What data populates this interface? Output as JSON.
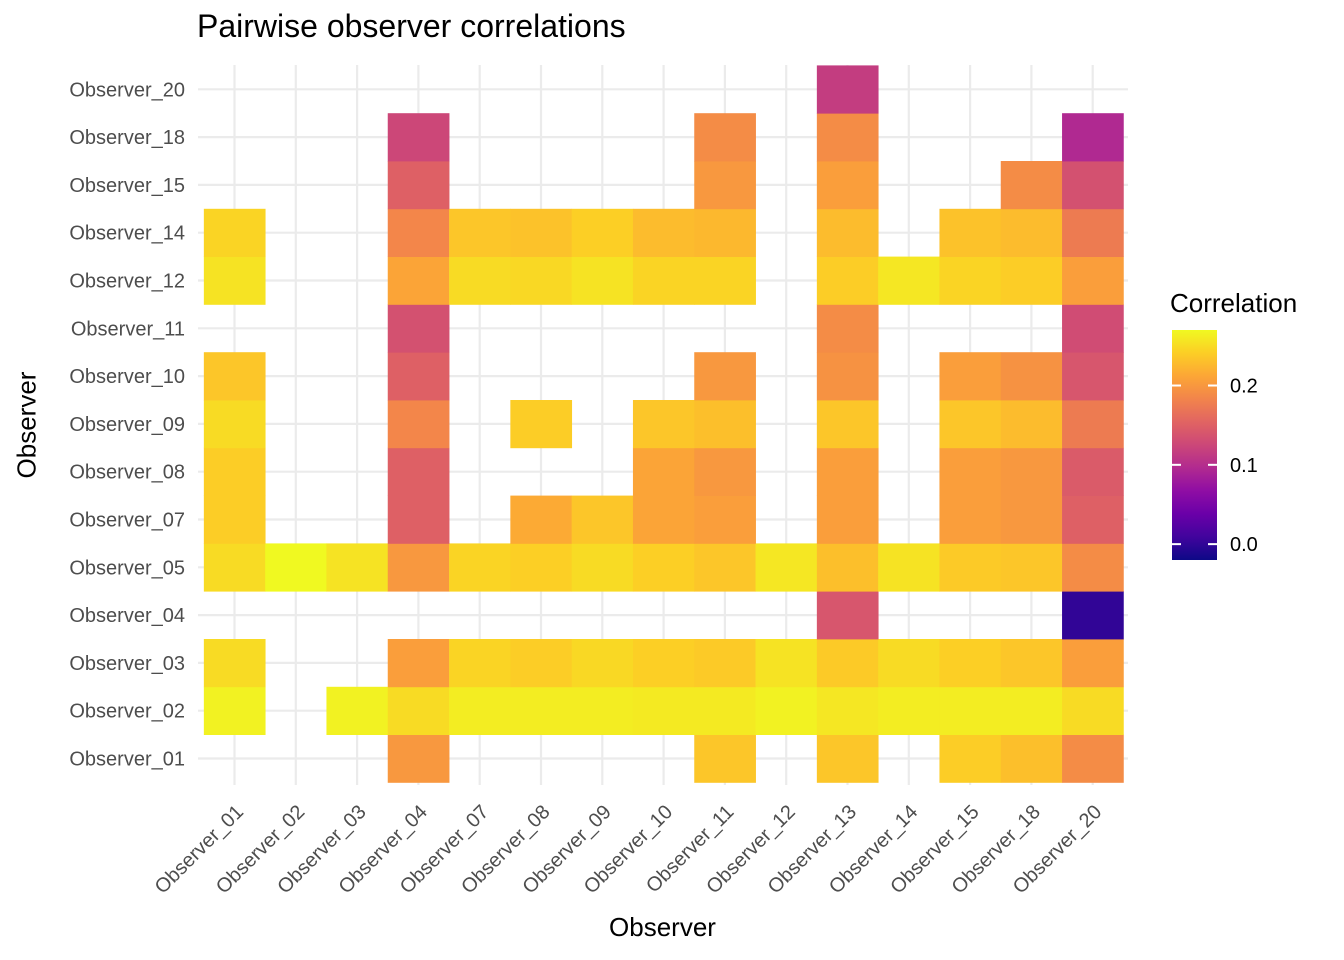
{
  "chart_data": {
    "type": "heatmap",
    "title": "Pairwise observer correlations",
    "xlabel": "Observer",
    "ylabel": "Observer",
    "x_categories": [
      "Observer_01",
      "Observer_02",
      "Observer_03",
      "Observer_04",
      "Observer_07",
      "Observer_08",
      "Observer_09",
      "Observer_10",
      "Observer_11",
      "Observer_12",
      "Observer_13",
      "Observer_14",
      "Observer_15",
      "Observer_18",
      "Observer_20"
    ],
    "y_categories": [
      "Observer_01",
      "Observer_02",
      "Observer_03",
      "Observer_04",
      "Observer_05",
      "Observer_07",
      "Observer_08",
      "Observer_09",
      "Observer_10",
      "Observer_11",
      "Observer_12",
      "Observer_14",
      "Observer_15",
      "Observer_18",
      "Observer_20"
    ],
    "cells": [
      [
        "Observer_04",
        "Observer_01",
        0.2
      ],
      [
        "Observer_11",
        "Observer_01",
        0.235
      ],
      [
        "Observer_13",
        "Observer_01",
        0.235
      ],
      [
        "Observer_15",
        "Observer_01",
        0.24
      ],
      [
        "Observer_18",
        "Observer_01",
        0.23
      ],
      [
        "Observer_20",
        "Observer_01",
        0.19
      ],
      [
        "Observer_01",
        "Observer_02",
        0.265
      ],
      [
        "Observer_03",
        "Observer_02",
        0.265
      ],
      [
        "Observer_04",
        "Observer_02",
        0.25
      ],
      [
        "Observer_07",
        "Observer_02",
        0.262
      ],
      [
        "Observer_08",
        "Observer_02",
        0.262
      ],
      [
        "Observer_09",
        "Observer_02",
        0.262
      ],
      [
        "Observer_10",
        "Observer_02",
        0.26
      ],
      [
        "Observer_11",
        "Observer_02",
        0.26
      ],
      [
        "Observer_12",
        "Observer_02",
        0.265
      ],
      [
        "Observer_13",
        "Observer_02",
        0.258
      ],
      [
        "Observer_14",
        "Observer_02",
        0.262
      ],
      [
        "Observer_15",
        "Observer_02",
        0.262
      ],
      [
        "Observer_18",
        "Observer_02",
        0.262
      ],
      [
        "Observer_20",
        "Observer_02",
        0.25
      ],
      [
        "Observer_01",
        "Observer_03",
        0.25
      ],
      [
        "Observer_04",
        "Observer_03",
        0.205
      ],
      [
        "Observer_07",
        "Observer_03",
        0.245
      ],
      [
        "Observer_08",
        "Observer_03",
        0.24
      ],
      [
        "Observer_09",
        "Observer_03",
        0.248
      ],
      [
        "Observer_10",
        "Observer_03",
        0.242
      ],
      [
        "Observer_11",
        "Observer_03",
        0.238
      ],
      [
        "Observer_12",
        "Observer_03",
        0.255
      ],
      [
        "Observer_13",
        "Observer_03",
        0.238
      ],
      [
        "Observer_14",
        "Observer_03",
        0.25
      ],
      [
        "Observer_15",
        "Observer_03",
        0.242
      ],
      [
        "Observer_18",
        "Observer_03",
        0.235
      ],
      [
        "Observer_20",
        "Observer_03",
        0.205
      ],
      [
        "Observer_13",
        "Observer_04",
        0.14
      ],
      [
        "Observer_20",
        "Observer_04",
        0.0
      ],
      [
        "Observer_01",
        "Observer_05",
        0.25
      ],
      [
        "Observer_02",
        "Observer_05",
        0.27
      ],
      [
        "Observer_03",
        "Observer_05",
        0.255
      ],
      [
        "Observer_04",
        "Observer_05",
        0.2
      ],
      [
        "Observer_07",
        "Observer_05",
        0.245
      ],
      [
        "Observer_08",
        "Observer_05",
        0.242
      ],
      [
        "Observer_09",
        "Observer_05",
        0.25
      ],
      [
        "Observer_10",
        "Observer_05",
        0.242
      ],
      [
        "Observer_11",
        "Observer_05",
        0.235
      ],
      [
        "Observer_12",
        "Observer_05",
        0.258
      ],
      [
        "Observer_13",
        "Observer_05",
        0.23
      ],
      [
        "Observer_14",
        "Observer_05",
        0.255
      ],
      [
        "Observer_15",
        "Observer_05",
        0.238
      ],
      [
        "Observer_18",
        "Observer_05",
        0.235
      ],
      [
        "Observer_20",
        "Observer_05",
        0.19
      ],
      [
        "Observer_01",
        "Observer_07",
        0.24
      ],
      [
        "Observer_04",
        "Observer_07",
        0.15
      ],
      [
        "Observer_08",
        "Observer_07",
        0.215
      ],
      [
        "Observer_09",
        "Observer_07",
        0.235
      ],
      [
        "Observer_10",
        "Observer_07",
        0.21
      ],
      [
        "Observer_11",
        "Observer_07",
        0.205
      ],
      [
        "Observer_13",
        "Observer_07",
        0.205
      ],
      [
        "Observer_15",
        "Observer_07",
        0.205
      ],
      [
        "Observer_18",
        "Observer_07",
        0.2
      ],
      [
        "Observer_20",
        "Observer_07",
        0.15
      ],
      [
        "Observer_01",
        "Observer_08",
        0.24
      ],
      [
        "Observer_04",
        "Observer_08",
        0.15
      ],
      [
        "Observer_10",
        "Observer_08",
        0.21
      ],
      [
        "Observer_11",
        "Observer_08",
        0.2
      ],
      [
        "Observer_13",
        "Observer_08",
        0.205
      ],
      [
        "Observer_15",
        "Observer_08",
        0.205
      ],
      [
        "Observer_18",
        "Observer_08",
        0.2
      ],
      [
        "Observer_20",
        "Observer_08",
        0.145
      ],
      [
        "Observer_01",
        "Observer_09",
        0.25
      ],
      [
        "Observer_04",
        "Observer_09",
        0.185
      ],
      [
        "Observer_08",
        "Observer_09",
        0.24
      ],
      [
        "Observer_10",
        "Observer_09",
        0.235
      ],
      [
        "Observer_11",
        "Observer_09",
        0.23
      ],
      [
        "Observer_13",
        "Observer_09",
        0.235
      ],
      [
        "Observer_15",
        "Observer_09",
        0.235
      ],
      [
        "Observer_18",
        "Observer_09",
        0.228
      ],
      [
        "Observer_20",
        "Observer_09",
        0.175
      ],
      [
        "Observer_01",
        "Observer_10",
        0.235
      ],
      [
        "Observer_04",
        "Observer_10",
        0.15
      ],
      [
        "Observer_11",
        "Observer_10",
        0.2
      ],
      [
        "Observer_13",
        "Observer_10",
        0.195
      ],
      [
        "Observer_15",
        "Observer_10",
        0.205
      ],
      [
        "Observer_18",
        "Observer_10",
        0.195
      ],
      [
        "Observer_20",
        "Observer_10",
        0.14
      ],
      [
        "Observer_04",
        "Observer_11",
        0.135
      ],
      [
        "Observer_13",
        "Observer_11",
        0.19
      ],
      [
        "Observer_20",
        "Observer_11",
        0.13
      ],
      [
        "Observer_01",
        "Observer_12",
        0.255
      ],
      [
        "Observer_04",
        "Observer_12",
        0.21
      ],
      [
        "Observer_07",
        "Observer_12",
        0.25
      ],
      [
        "Observer_08",
        "Observer_12",
        0.248
      ],
      [
        "Observer_09",
        "Observer_12",
        0.255
      ],
      [
        "Observer_10",
        "Observer_12",
        0.245
      ],
      [
        "Observer_11",
        "Observer_12",
        0.245
      ],
      [
        "Observer_13",
        "Observer_12",
        0.24
      ],
      [
        "Observer_14",
        "Observer_12",
        0.258
      ],
      [
        "Observer_15",
        "Observer_12",
        0.245
      ],
      [
        "Observer_18",
        "Observer_12",
        0.24
      ],
      [
        "Observer_20",
        "Observer_12",
        0.205
      ],
      [
        "Observer_01",
        "Observer_14",
        0.245
      ],
      [
        "Observer_04",
        "Observer_14",
        0.185
      ],
      [
        "Observer_07",
        "Observer_14",
        0.235
      ],
      [
        "Observer_08",
        "Observer_14",
        0.232
      ],
      [
        "Observer_09",
        "Observer_14",
        0.242
      ],
      [
        "Observer_10",
        "Observer_14",
        0.228
      ],
      [
        "Observer_11",
        "Observer_14",
        0.225
      ],
      [
        "Observer_13",
        "Observer_14",
        0.228
      ],
      [
        "Observer_15",
        "Observer_14",
        0.232
      ],
      [
        "Observer_18",
        "Observer_14",
        0.228
      ],
      [
        "Observer_20",
        "Observer_14",
        0.175
      ],
      [
        "Observer_04",
        "Observer_15",
        0.15
      ],
      [
        "Observer_11",
        "Observer_15",
        0.2
      ],
      [
        "Observer_13",
        "Observer_15",
        0.205
      ],
      [
        "Observer_18",
        "Observer_15",
        0.19
      ],
      [
        "Observer_20",
        "Observer_15",
        0.135
      ],
      [
        "Observer_04",
        "Observer_18",
        0.125
      ],
      [
        "Observer_11",
        "Observer_18",
        0.19
      ],
      [
        "Observer_13",
        "Observer_18",
        0.19
      ],
      [
        "Observer_20",
        "Observer_18",
        0.095
      ],
      [
        "Observer_13",
        "Observer_20",
        0.115
      ]
    ],
    "color_scale": {
      "name": "plasma",
      "title": "Correlation",
      "range": [
        -0.02,
        0.27
      ],
      "ticks": [
        0.0,
        0.1,
        0.2
      ],
      "tick_labels": [
        "0.0",
        "0.1",
        "0.2"
      ]
    },
    "legend": "right",
    "grid": true
  }
}
